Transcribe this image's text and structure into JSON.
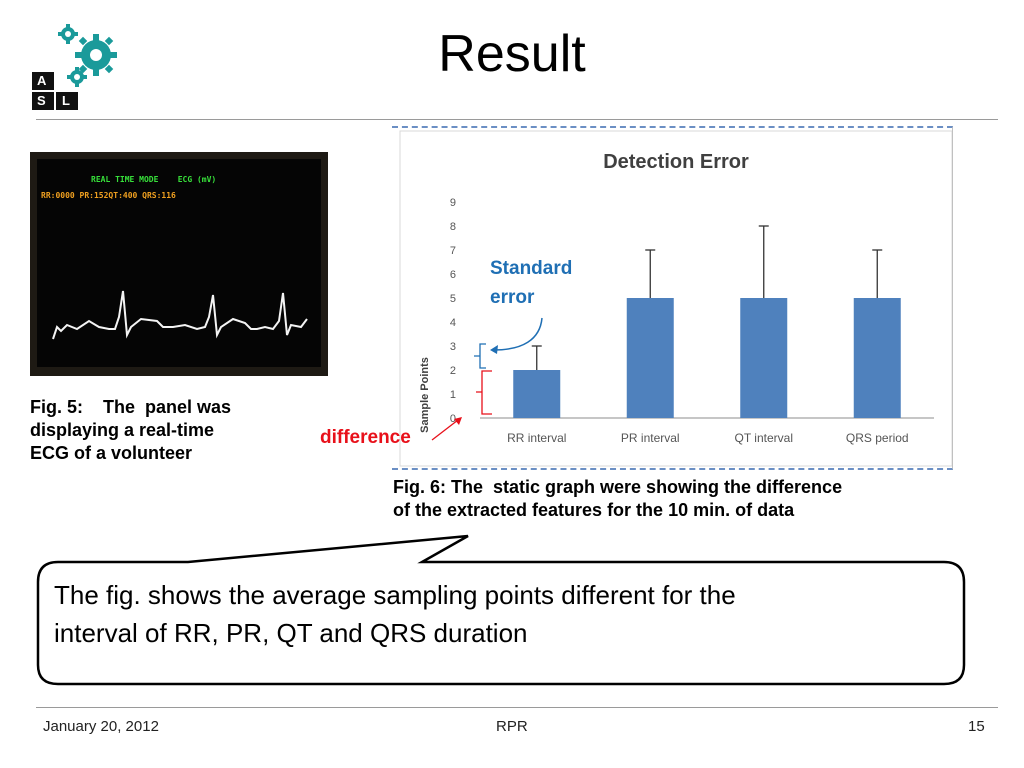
{
  "slide": {
    "title": "Result",
    "colors": {
      "accent_teal": "#1a9a9a",
      "chart_bar": "#4f81bd",
      "annotation_blue": "#1f6fb4",
      "annotation_red": "#e8101a"
    }
  },
  "logo": {
    "icon": "gears-logo",
    "letters": [
      "A",
      "S",
      "L"
    ]
  },
  "ecg_panel": {
    "icon": "ecg-monitor-screenshot",
    "line1": "REAL TIME MODE    ECG (mV)",
    "line2": "RR:0000 PR:152QT:400 QRS:116"
  },
  "fig5_caption": {
    "line1": "Fig. 5:    The  panel was",
    "line2": "displaying a real-time",
    "line3": "ECG of a volunteer"
  },
  "annotations": {
    "standard_error_line1": "Standard",
    "standard_error_line2": "error",
    "difference": "difference"
  },
  "chart_data": {
    "type": "bar",
    "title": "Detection Error",
    "ylabel": "Sample Points",
    "xlabel": "",
    "categories": [
      "RR interval",
      "PR interval",
      "QT interval",
      "QRS period"
    ],
    "values": [
      2,
      5,
      5,
      5
    ],
    "error_upper": [
      3,
      7,
      8,
      7
    ],
    "ylim": [
      0,
      9
    ],
    "yticks": [
      "0",
      "1",
      "2",
      "3",
      "4",
      "5",
      "6",
      "7",
      "8",
      "9"
    ],
    "grid": false,
    "legend": "none"
  },
  "fig6_caption": {
    "line1": "Fig. 6: The  static graph were showing the difference",
    "line2": "of the extracted features for the 10 min. of data"
  },
  "callout": {
    "line1": "The fig. shows the average sampling points different for the",
    "line2": "interval of RR, PR, QT and QRS duration"
  },
  "footer": {
    "date": "January 20, 2012",
    "center": "RPR",
    "page": "15"
  }
}
